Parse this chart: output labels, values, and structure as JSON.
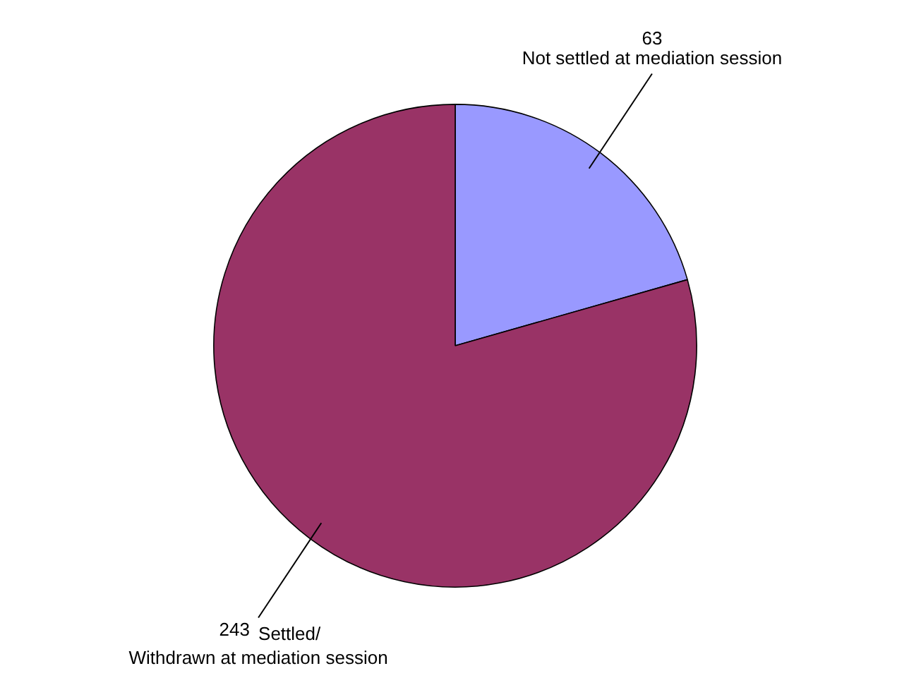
{
  "chart_data": {
    "type": "pie",
    "categories": [
      "Not settled at mediation session",
      "Settled/\nWithdrawn at mediation session"
    ],
    "values": [
      63,
      243
    ],
    "colors": [
      "#9999ff",
      "#993366"
    ],
    "data_labels": true,
    "legend": false
  }
}
